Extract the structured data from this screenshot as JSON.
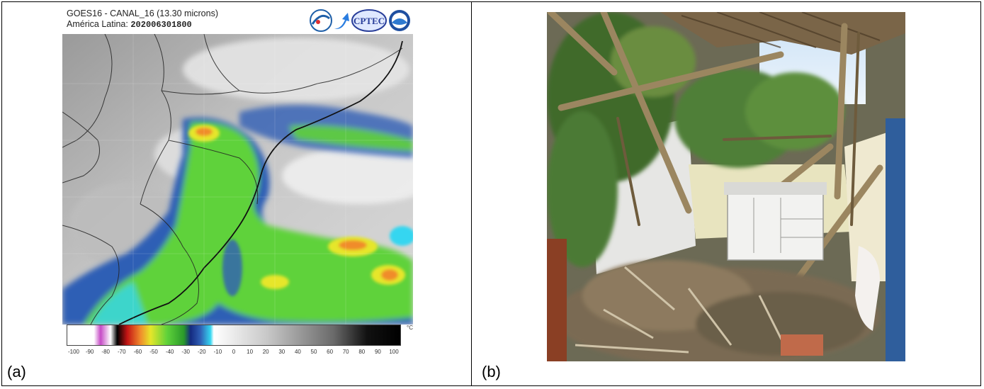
{
  "panel_a": {
    "label": "(a)",
    "title": "GOES16 - CANAL_16 (13.30 microns)",
    "subtitle_prefix": "América Latina:",
    "timestamp": "202006301800",
    "logo_text": "CPTEC",
    "colorbar_ticks": [
      "-100",
      "-90",
      "-80",
      "-70",
      "-60",
      "-50",
      "-40",
      "-30",
      "-20",
      "-10",
      "0",
      "10",
      "20",
      "30",
      "40",
      "50",
      "60",
      "70",
      "80",
      "90",
      "100"
    ],
    "colorbar_unit": "°C"
  },
  "panel_b": {
    "label": "(b)"
  },
  "colors": {
    "cloud_green": "#5fd23a",
    "cloud_yellow": "#e6e62a",
    "cloud_orange": "#f08c2c",
    "cloud_blue": "#2f5fb5",
    "cloud_cyan": "#35d6f0",
    "land_grey": "#b9b9b9"
  }
}
